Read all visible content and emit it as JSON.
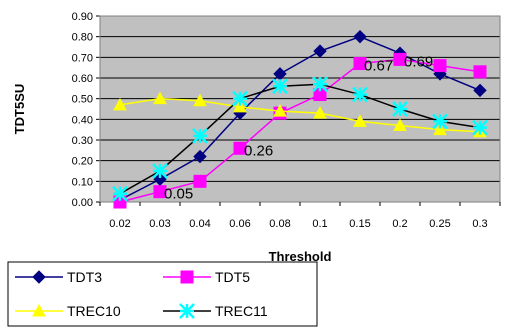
{
  "chart_data": {
    "type": "line",
    "xlabel": "Threshold",
    "ylabel": "TDT5SU",
    "ylim": [
      0,
      0.9
    ],
    "y_ticks": [
      "0.00",
      "0.10",
      "0.20",
      "0.30",
      "0.40",
      "0.50",
      "0.60",
      "0.70",
      "0.80",
      "0.90"
    ],
    "categories": [
      "0.02",
      "0.03",
      "0.04",
      "0.06",
      "0.08",
      "0.1",
      "0.15",
      "0.2",
      "0.25",
      "0.3"
    ],
    "grid": true,
    "legend_position": "bottom",
    "series": [
      {
        "name": "TDT3",
        "color": "#000080",
        "marker": "diamond",
        "values": [
          0.01,
          0.11,
          0.22,
          0.43,
          0.62,
          0.73,
          0.8,
          0.72,
          0.62,
          0.54
        ]
      },
      {
        "name": "TDT5",
        "color": "#ff00ff",
        "marker": "square",
        "values": [
          0.0,
          0.05,
          0.1,
          0.26,
          0.43,
          0.52,
          0.67,
          0.69,
          0.66,
          0.63
        ]
      },
      {
        "name": "TREC10",
        "color": "#ffff00",
        "marker": "triangle",
        "values": [
          0.47,
          0.5,
          0.49,
          0.46,
          0.44,
          0.43,
          0.39,
          0.37,
          0.35,
          0.34
        ]
      },
      {
        "name": "TREC11",
        "color": "#00ffff",
        "marker": "asterisk",
        "values": [
          0.04,
          0.15,
          0.32,
          0.5,
          0.56,
          0.57,
          0.52,
          0.45,
          0.39,
          0.36
        ]
      }
    ],
    "annotations": [
      {
        "text": "0.05",
        "series": "TDT5",
        "category": "0.03"
      },
      {
        "text": "0.26",
        "series": "TDT5",
        "category": "0.06"
      },
      {
        "text": "0.67",
        "series": "TDT5",
        "category": "0.15"
      },
      {
        "text": "0.69",
        "series": "TDT5",
        "category": "0.2"
      }
    ]
  },
  "colors": {
    "plot_background": "#c0c0c0",
    "gridline": "#000000"
  }
}
